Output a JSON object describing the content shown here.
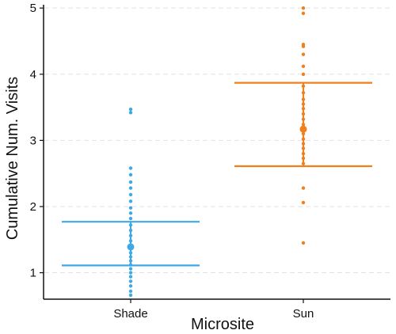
{
  "chart_data": {
    "type": "scatter",
    "xlabel": "Microsite",
    "ylabel": "Cumulative Num. Visits",
    "categories": [
      "Shade",
      "Sun"
    ],
    "ylim": [
      0.6,
      5.05
    ],
    "yticks": [
      "1",
      "2",
      "3",
      "4",
      "5"
    ],
    "grid": "horizontal dashed",
    "legend": "none",
    "series": [
      {
        "category": "Shade",
        "color": "#3ea9e5",
        "points": [
          3.47,
          3.42,
          2.58,
          2.48,
          2.37,
          2.28,
          2.18,
          2.08,
          1.98,
          1.9,
          1.82,
          1.72,
          1.64,
          1.56,
          1.48,
          1.42,
          1.36,
          1.3,
          1.24,
          1.18,
          1.12,
          1.06,
          1.0,
          0.94,
          0.87,
          0.8,
          0.72,
          0.66
        ],
        "mean": 1.39,
        "ci": [
          1.11,
          1.77
        ]
      },
      {
        "category": "Sun",
        "color": "#f07f1c",
        "points": [
          5.0,
          4.92,
          4.45,
          4.42,
          4.3,
          4.12,
          4.0,
          3.82,
          3.72,
          3.62,
          3.55,
          3.48,
          3.4,
          3.32,
          3.24,
          3.17,
          3.1,
          3.02,
          2.95,
          2.88,
          2.8,
          2.73,
          2.65,
          2.28,
          2.06,
          1.45
        ],
        "mean": 3.17,
        "ci": [
          2.61,
          3.87
        ]
      }
    ]
  }
}
